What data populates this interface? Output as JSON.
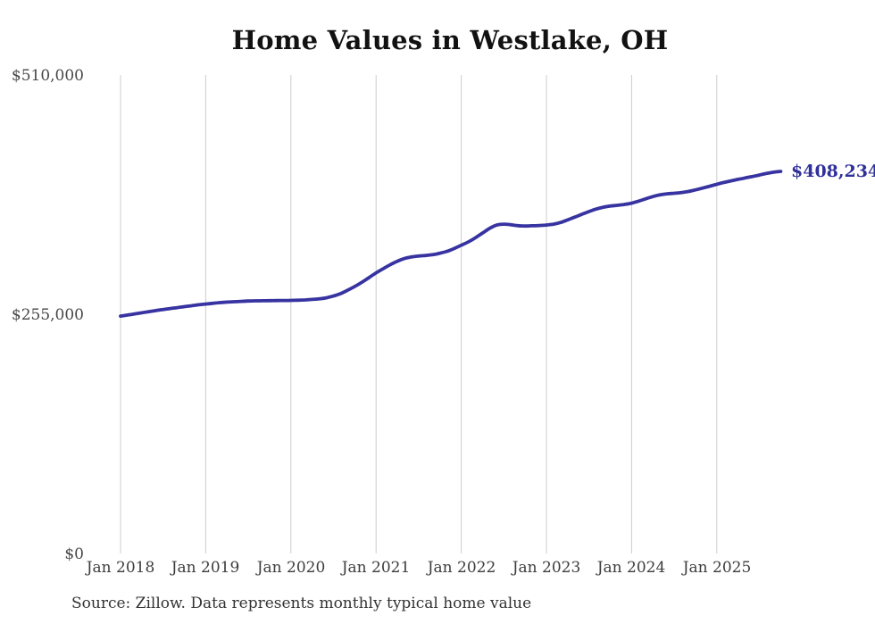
{
  "title": "Home Values in Westlake, OH",
  "annotation": {
    "latest_value_label": "$408,234"
  },
  "source_note": "Source: Zillow. Data represents monthly typical home value",
  "colors": {
    "line": "#3733a1",
    "latest_label": "#30309b",
    "grid": "#cccccc",
    "title_text": "#121212",
    "axis_text": "#3d3d3d"
  },
  "chart_data": {
    "type": "line",
    "title": "Home Values in Westlake, OH",
    "series_name": "Monthly typical home value (USD)",
    "start_month": "2018-01",
    "end_month": "2025-10",
    "latest_value": 408234,
    "ylim": [
      0,
      510000
    ],
    "grid": "vertical-only",
    "legend": "none",
    "y_ticks": [
      {
        "label": "$0",
        "value": 0
      },
      {
        "label": "$255,000",
        "value": 255000
      },
      {
        "label": "$510,000",
        "value": 510000
      }
    ],
    "x_tick_labels": [
      "Jan 2018",
      "Jan 2019",
      "Jan 2020",
      "Jan 2021",
      "Jan 2022",
      "Jan 2023",
      "Jan 2024",
      "Jan 2025"
    ],
    "x_tick_month_indices": [
      0,
      12,
      24,
      36,
      48,
      60,
      72,
      84
    ],
    "values": [
      254000,
      255100,
      256300,
      257500,
      258700,
      259900,
      261000,
      262000,
      263000,
      264000,
      265000,
      266000,
      266800,
      267600,
      268300,
      268900,
      269300,
      269700,
      270000,
      270200,
      270300,
      270400,
      270500,
      270600,
      270700,
      270900,
      271200,
      271700,
      272300,
      273500,
      275400,
      277900,
      281500,
      285500,
      290000,
      295000,
      300000,
      304500,
      308800,
      312500,
      315300,
      317000,
      318000,
      318600,
      319400,
      321000,
      323000,
      326000,
      329500,
      333000,
      337500,
      342500,
      347500,
      351000,
      352000,
      351300,
      350300,
      350000,
      350200,
      350500,
      351000,
      352000,
      353800,
      356500,
      359500,
      362500,
      365400,
      368000,
      370000,
      371300,
      372000,
      373000,
      374300,
      376500,
      379000,
      381400,
      383200,
      384300,
      384900,
      385600,
      386800,
      388500,
      390400,
      392400,
      394500,
      396400,
      398100,
      399700,
      401200,
      402700,
      404300,
      406000,
      407300,
      408234
    ]
  }
}
